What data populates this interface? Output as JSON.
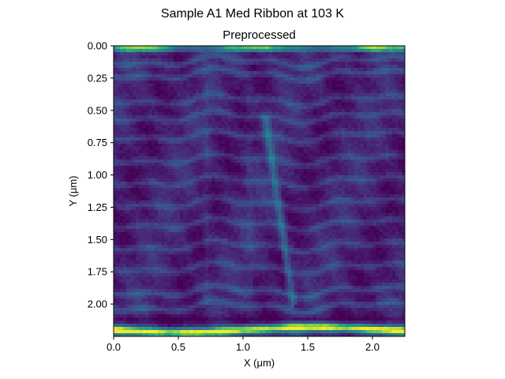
{
  "chart_data": {
    "type": "heatmap",
    "suptitle": "Sample A1 Med Ribbon at 103 K",
    "title": "Preprocessed",
    "xlabel": "X (μm)",
    "ylabel": "Y (μm)",
    "xlim": [
      0.0,
      2.25
    ],
    "ylim": [
      2.25,
      0.0
    ],
    "y_inverted": true,
    "xticks": [
      0.0,
      0.5,
      1.0,
      1.5,
      2.0
    ],
    "xtick_labels": [
      "0.0",
      "0.5",
      "1.0",
      "1.5",
      "2.0"
    ],
    "yticks": [
      0.0,
      0.25,
      0.5,
      0.75,
      1.0,
      1.25,
      1.5,
      1.75,
      2.0
    ],
    "ytick_labels": [
      "0.00",
      "0.25",
      "0.50",
      "0.75",
      "1.00",
      "1.25",
      "1.50",
      "1.75",
      "2.00"
    ],
    "colormap": "viridis",
    "colorbar": false,
    "grid": false,
    "features": {
      "bright_top_band_y": 0.02,
      "bright_bottom_band_y": 2.2,
      "horizontal_stripe_rows_y": [
        0.12,
        0.22,
        0.42,
        0.55,
        0.7,
        0.88,
        1.05,
        1.22,
        1.38,
        1.55,
        1.72,
        1.9,
        2.02
      ],
      "diagonal_ridge": {
        "start": [
          1.18,
          0.6
        ],
        "end": [
          1.38,
          1.95
        ]
      }
    },
    "colors": {
      "low": "#440154",
      "mid_low": "#3b528b",
      "mid": "#21918c",
      "mid_high": "#5ec962",
      "high": "#fde725"
    }
  }
}
